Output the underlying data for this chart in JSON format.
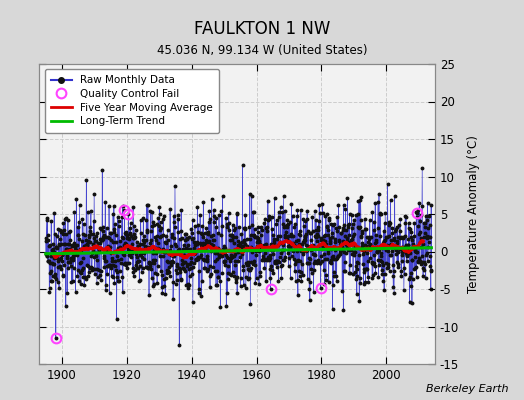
{
  "title": "FAULKTON 1 NW",
  "subtitle": "45.036 N, 99.134 W (United States)",
  "ylabel": "Temperature Anomaly (°C)",
  "credit": "Berkeley Earth",
  "ylim": [
    -15,
    25
  ],
  "yticks": [
    -15,
    -10,
    -5,
    0,
    5,
    10,
    15,
    20,
    25
  ],
  "xlim": [
    1893,
    2015
  ],
  "xticks": [
    1900,
    1920,
    1940,
    1960,
    1980,
    2000
  ],
  "year_start": 1895,
  "year_end": 2013,
  "fig_bg_color": "#d8d8d8",
  "plot_bg_color": "#f2f2f2",
  "raw_line_color": "#3333cc",
  "raw_dot_color": "#111111",
  "moving_avg_color": "#dd0000",
  "trend_color": "#00bb00",
  "qc_fail_color": "#ff44ff",
  "seed": 42,
  "noise_std": 2.8,
  "trend_slope": 0.004
}
